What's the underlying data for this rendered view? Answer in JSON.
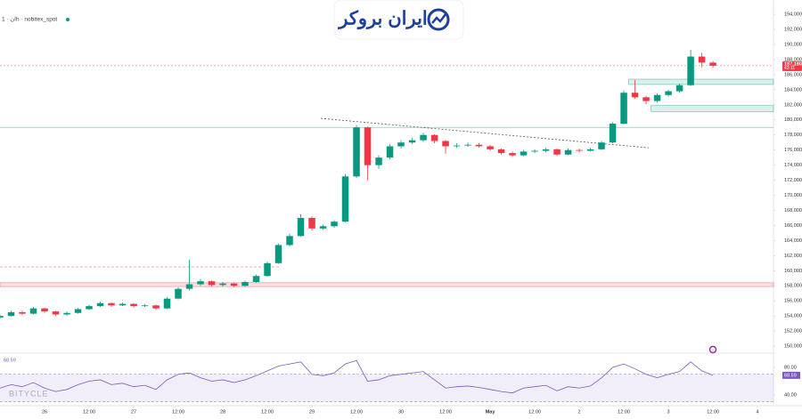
{
  "logo": "ایران بروکر",
  "watermark": "BITYCLE",
  "chart_data": {
    "type": "candlestick",
    "header": "ان · 1h · nobitex_spot",
    "up_color": "#089981",
    "down_color": "#f23645",
    "x": [
      -12,
      -9,
      -6,
      -3,
      0,
      3,
      6,
      9,
      12,
      15,
      18,
      21,
      24,
      27,
      30,
      33,
      36,
      39,
      42,
      45,
      48,
      51,
      54,
      57,
      60,
      63,
      66,
      69,
      72,
      75,
      78,
      81,
      84,
      87,
      90,
      93,
      96,
      99,
      102,
      105,
      108,
      111,
      114,
      117,
      120,
      123,
      126,
      129,
      132,
      135,
      138,
      141,
      144,
      147,
      150,
      153,
      156,
      159,
      162,
      165,
      168,
      171,
      174,
      177,
      180
    ],
    "open": [
      153800,
      154000,
      154500,
      154300,
      155000,
      154600,
      154200,
      154400,
      154900,
      155300,
      155700,
      155400,
      155600,
      155300,
      155400,
      155000,
      156300,
      157600,
      158200,
      158600,
      158100,
      158300,
      158000,
      158500,
      159300,
      161000,
      163400,
      164600,
      167000,
      165600,
      165900,
      166500,
      172500,
      179000,
      174000,
      175000,
      176500,
      177000,
      177300,
      178000,
      177200,
      176500,
      176600,
      176700,
      176500,
      176100,
      175600,
      175300,
      175800,
      175900,
      176100,
      175400,
      176000,
      175900,
      176100,
      177000,
      179500,
      183600,
      183000,
      182500,
      183300,
      183800,
      184600,
      188400,
      187600
    ],
    "high": [
      154200,
      154700,
      154700,
      155200,
      155100,
      154700,
      154600,
      155100,
      155500,
      155900,
      155800,
      155800,
      155700,
      155600,
      155500,
      156500,
      157800,
      161500,
      158900,
      158700,
      158500,
      158400,
      158700,
      159500,
      161200,
      163600,
      164900,
      167500,
      167200,
      166100,
      166700,
      172800,
      179300,
      179100,
      175300,
      176800,
      177300,
      177600,
      178300,
      178100,
      177300,
      176900,
      177000,
      176900,
      176700,
      176200,
      175800,
      176000,
      176100,
      176300,
      176200,
      176200,
      176200,
      176300,
      177200,
      179700,
      183900,
      185300,
      183200,
      183500,
      184000,
      184800,
      189300,
      188900,
      187800
    ],
    "low": [
      153600,
      153900,
      154100,
      154200,
      154400,
      154000,
      154000,
      154300,
      154800,
      155200,
      155200,
      155300,
      155100,
      155200,
      154800,
      154900,
      156200,
      157400,
      158000,
      157900,
      157900,
      157800,
      157900,
      158400,
      159200,
      160900,
      163200,
      164500,
      165300,
      165400,
      165700,
      166400,
      172300,
      172000,
      173500,
      174800,
      176200,
      176800,
      177100,
      176900,
      175500,
      176300,
      176400,
      176300,
      175900,
      175400,
      175100,
      175200,
      175600,
      175700,
      175200,
      175300,
      175700,
      175800,
      176000,
      176900,
      179400,
      182800,
      182100,
      182300,
      183100,
      183600,
      184500,
      187000,
      186900
    ],
    "close": [
      154000,
      154500,
      154300,
      155000,
      154600,
      154200,
      154400,
      154900,
      155300,
      155700,
      155400,
      155600,
      155300,
      155400,
      155000,
      156300,
      157600,
      158200,
      158600,
      158100,
      158300,
      158000,
      158500,
      159300,
      161000,
      163400,
      164600,
      167000,
      165600,
      165900,
      166500,
      172500,
      179000,
      174000,
      175000,
      176500,
      177000,
      177300,
      178000,
      177200,
      176500,
      176600,
      176700,
      176500,
      176100,
      175600,
      175300,
      175800,
      175900,
      176100,
      175400,
      176000,
      175900,
      176100,
      177000,
      179500,
      183600,
      183000,
      182500,
      183300,
      183800,
      184600,
      188400,
      187600,
      187190
    ],
    "last_price": {
      "value": 187190,
      "label": "187,190"
    },
    "countdown": "43:11",
    "xlim": [
      -12,
      196.3
    ],
    "xticks": [
      {
        "value": 0,
        "label": "26"
      },
      {
        "value": 12,
        "label": "12:00"
      },
      {
        "value": 24,
        "label": "27"
      },
      {
        "value": 36,
        "label": "12:00"
      },
      {
        "value": 48,
        "label": "28"
      },
      {
        "value": 60,
        "label": "12:00"
      },
      {
        "value": 72,
        "label": "29"
      },
      {
        "value": 84,
        "label": "12:00"
      },
      {
        "value": 96,
        "label": "30"
      },
      {
        "value": 108,
        "label": "12:00"
      },
      {
        "value": 120,
        "label": "May"
      },
      {
        "value": 132,
        "label": "12:00"
      },
      {
        "value": 144,
        "label": "2"
      },
      {
        "value": 156,
        "label": "12:00"
      },
      {
        "value": 168,
        "label": "3"
      },
      {
        "value": 180,
        "label": "12:00"
      },
      {
        "value": 192,
        "label": "4"
      }
    ],
    "ylim": [
      149300,
      195900
    ],
    "yticks": [
      {
        "value": 150000,
        "label": "150,000"
      },
      {
        "value": 152000,
        "label": "152,000"
      },
      {
        "value": 154000,
        "label": "154,000"
      },
      {
        "value": 156000,
        "label": "156,000"
      },
      {
        "value": 158000,
        "label": "158,000"
      },
      {
        "value": 160000,
        "label": "160,000"
      },
      {
        "value": 162000,
        "label": "162,000"
      },
      {
        "value": 164000,
        "label": "164,000"
      },
      {
        "value": 166000,
        "label": "166,000"
      },
      {
        "value": 168000,
        "label": "168,000"
      },
      {
        "value": 170000,
        "label": "170,000"
      },
      {
        "value": 172000,
        "label": "172,000"
      },
      {
        "value": 174000,
        "label": "174,000"
      },
      {
        "value": 176000,
        "label": "176,000"
      },
      {
        "value": 178000,
        "label": "178,000"
      },
      {
        "value": 180000,
        "label": "180,000"
      },
      {
        "value": 182000,
        "label": "182,000"
      },
      {
        "value": 184000,
        "label": "184,000"
      },
      {
        "value": 186000,
        "label": "186,000"
      },
      {
        "value": 188000,
        "label": "188,000"
      },
      {
        "value": 190000,
        "label": "190,000"
      },
      {
        "value": 192000,
        "label": "192,000"
      },
      {
        "value": 194000,
        "label": "194,000"
      }
    ],
    "zones": [
      {
        "from": 184700,
        "to": 185400,
        "start": 157.3,
        "color": "#089981"
      },
      {
        "from": 181100,
        "to": 181900,
        "start": 163.3,
        "color": "#089981"
      },
      {
        "from": 157900,
        "to": 158400,
        "start": -12,
        "color": "#f23645"
      }
    ],
    "hlines": [
      {
        "value": 160500,
        "end": 63.6,
        "color": "#f23645"
      },
      {
        "value": 179000,
        "end": 196.3,
        "color": "#089981"
      }
    ],
    "trendline": {
      "x": [
        74.4,
        162.7
      ],
      "y": [
        180200,
        176300
      ]
    },
    "rsi": {
      "color": "#7e57c2",
      "values": [
        50,
        55,
        52,
        58,
        50,
        45,
        48,
        55,
        60,
        62,
        55,
        57,
        52,
        54,
        48,
        62,
        70,
        72,
        65,
        60,
        62,
        58,
        62,
        68,
        75,
        82,
        85,
        88,
        70,
        68,
        72,
        85,
        90,
        60,
        62,
        68,
        70,
        72,
        74,
        62,
        50,
        52,
        53,
        51,
        48,
        45,
        43,
        50,
        52,
        54,
        46,
        52,
        50,
        53,
        65,
        80,
        85,
        78,
        70,
        65,
        70,
        74,
        88,
        75,
        68.59
      ],
      "ylim": [
        25.8,
        96.8
      ],
      "band": [
        30,
        70
      ],
      "yticks": [
        {
          "value": 80,
          "label": "80.00"
        },
        {
          "value": 40,
          "label": "40.00"
        }
      ]
    }
  }
}
